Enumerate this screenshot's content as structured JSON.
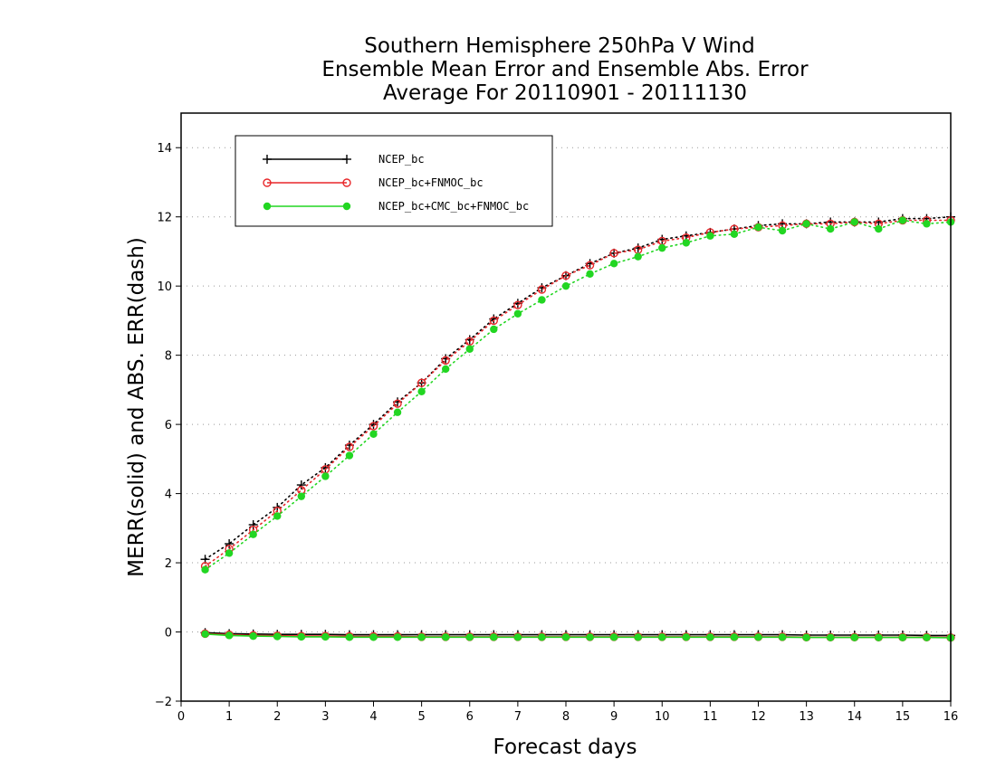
{
  "chart_data": {
    "type": "line",
    "title_lines": [
      "Southern Hemisphere 250hPa V Wind",
      "Ensemble Mean Error and Ensemble Abs. Error",
      "Average For 20110901 - 20111130"
    ],
    "xlabel": "Forecast days",
    "ylabel": "MERR(solid) and ABS. ERR(dash)",
    "xlim": [
      0,
      16
    ],
    "ylim": [
      -2,
      15
    ],
    "xticks": [
      0,
      1,
      2,
      3,
      4,
      5,
      6,
      7,
      8,
      9,
      10,
      11,
      12,
      13,
      14,
      15,
      16
    ],
    "yticks": [
      -2,
      0,
      2,
      4,
      6,
      8,
      10,
      12,
      14
    ],
    "grid": "horizontal-dotted",
    "legend_position": "top-left",
    "x": [
      0.5,
      1,
      1.5,
      2,
      2.5,
      3,
      3.5,
      4,
      4.5,
      5,
      5.5,
      6,
      6.5,
      7,
      7.5,
      8,
      8.5,
      9,
      9.5,
      10,
      10.5,
      11,
      11.5,
      12,
      12.5,
      13,
      13.5,
      14,
      14.5,
      15,
      15.5,
      16
    ],
    "series": [
      {
        "name": "NCEP_bc",
        "color": "#000000",
        "marker": "plus",
        "abs_err": [
          2.1,
          2.55,
          3.1,
          3.6,
          4.25,
          4.75,
          5.4,
          6.0,
          6.65,
          7.2,
          7.9,
          8.45,
          9.05,
          9.5,
          9.95,
          10.3,
          10.65,
          10.95,
          11.1,
          11.35,
          11.45,
          11.55,
          11.65,
          11.75,
          11.8,
          11.8,
          11.85,
          11.85,
          11.85,
          11.95,
          11.95,
          12.0
        ],
        "mean_err": [
          -0.02,
          -0.05,
          -0.06,
          -0.07,
          -0.07,
          -0.07,
          -0.08,
          -0.08,
          -0.08,
          -0.08,
          -0.08,
          -0.08,
          -0.08,
          -0.08,
          -0.08,
          -0.08,
          -0.08,
          -0.08,
          -0.08,
          -0.08,
          -0.08,
          -0.08,
          -0.08,
          -0.08,
          -0.08,
          -0.09,
          -0.09,
          -0.09,
          -0.09,
          -0.09,
          -0.1,
          -0.1
        ]
      },
      {
        "name": "NCEP_bc+FNMOC_bc",
        "color": "#e8272a",
        "marker": "open-circle",
        "abs_err": [
          1.9,
          2.4,
          2.95,
          3.5,
          4.1,
          4.7,
          5.35,
          5.95,
          6.6,
          7.2,
          7.85,
          8.4,
          9.0,
          9.45,
          9.9,
          10.3,
          10.6,
          10.95,
          11.05,
          11.3,
          11.4,
          11.55,
          11.65,
          11.7,
          11.75,
          11.8,
          11.8,
          11.85,
          11.8,
          11.9,
          11.9,
          11.9
        ],
        "mean_err": [
          -0.05,
          -0.08,
          -0.1,
          -0.11,
          -0.12,
          -0.12,
          -0.13,
          -0.13,
          -0.13,
          -0.14,
          -0.14,
          -0.14,
          -0.14,
          -0.14,
          -0.14,
          -0.14,
          -0.14,
          -0.14,
          -0.14,
          -0.14,
          -0.14,
          -0.14,
          -0.14,
          -0.14,
          -0.14,
          -0.15,
          -0.15,
          -0.15,
          -0.15,
          -0.15,
          -0.15,
          -0.16
        ]
      },
      {
        "name": "NCEP_bc+CMC_bc+FNMOC_bc",
        "color": "#22d622",
        "marker": "filled-circle",
        "abs_err": [
          1.8,
          2.28,
          2.82,
          3.35,
          3.92,
          4.5,
          5.1,
          5.72,
          6.35,
          6.95,
          7.6,
          8.18,
          8.75,
          9.2,
          9.6,
          10.0,
          10.35,
          10.65,
          10.85,
          11.1,
          11.25,
          11.45,
          11.5,
          11.7,
          11.6,
          11.8,
          11.65,
          11.85,
          11.65,
          11.9,
          11.8,
          11.85
        ],
        "mean_err": [
          -0.06,
          -0.1,
          -0.12,
          -0.13,
          -0.14,
          -0.14,
          -0.15,
          -0.15,
          -0.15,
          -0.15,
          -0.15,
          -0.15,
          -0.15,
          -0.15,
          -0.15,
          -0.15,
          -0.15,
          -0.15,
          -0.15,
          -0.15,
          -0.15,
          -0.15,
          -0.15,
          -0.15,
          -0.15,
          -0.16,
          -0.16,
          -0.16,
          -0.16,
          -0.16,
          -0.16,
          -0.17
        ]
      }
    ]
  }
}
